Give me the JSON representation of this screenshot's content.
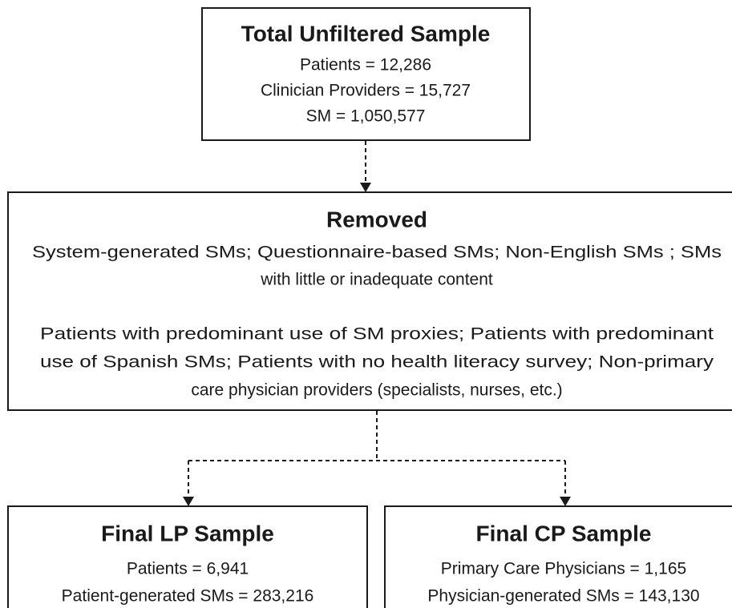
{
  "nodes": [
    {
      "title": "Total Unfiltered Sample",
      "lines": [
        "Patients = 12,286",
        "Clinician Providers = 15,727",
        "SM = 1,050,577"
      ]
    },
    {
      "title": "Removed",
      "paragraphs": [
        [
          "System-generated SMs; Questionnaire-based SMs; Non-English SMs ; SMs",
          "with little or inadequate content"
        ],
        [
          "Patients with predominant use of SM proxies; Patients with predominant",
          "use of Spanish SMs; Patients with no health literacy survey; Non-primary",
          "care physician providers (specialists, nurses, etc.)"
        ]
      ]
    },
    {
      "title": "Final LP Sample",
      "lines": [
        "Patients = 6,941",
        "Patient-generated SMs = 283,216"
      ]
    },
    {
      "title": "Final CP Sample",
      "lines": [
        "Primary Care Physicians = 1,165",
        "Physician-generated SMs = 143,130"
      ]
    }
  ]
}
